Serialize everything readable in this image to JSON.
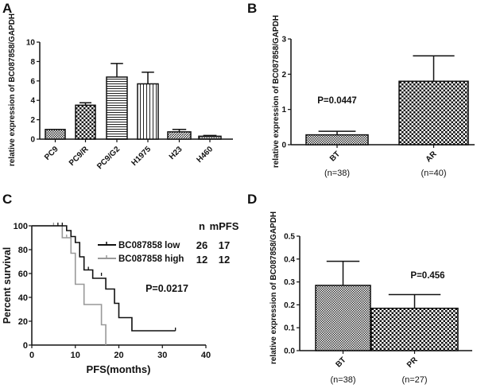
{
  "chart_data": [
    {
      "panel": "A",
      "type": "bar",
      "ylabel": "relative expression of BC087858/GAPDH",
      "categories": [
        "PC9",
        "PC9/R",
        "PC9/G2",
        "H1975",
        "H23",
        "H460"
      ],
      "values": [
        1.0,
        3.5,
        6.4,
        5.7,
        0.75,
        0.3
      ],
      "error_upper": [
        1.0,
        3.75,
        7.8,
        6.9,
        1.0,
        0.38
      ],
      "patterns": [
        "finecheck",
        "check",
        "hlines",
        "vlines",
        "diag",
        "finecheck"
      ],
      "ylim": [
        0,
        10
      ],
      "yticks": [
        0,
        2,
        4,
        6,
        8,
        10
      ]
    },
    {
      "panel": "B",
      "type": "bar",
      "ylabel": "relative expression of BC087858/GAPDH",
      "categories": [
        "BT",
        "AR"
      ],
      "sublabels": [
        "(n=38)",
        "(n=40)"
      ],
      "values": [
        0.28,
        1.8
      ],
      "error_upper": [
        0.38,
        2.52
      ],
      "patterns": [
        "finecheck",
        "check"
      ],
      "ylim": [
        0,
        3
      ],
      "yticks": [
        0,
        1,
        2,
        3
      ],
      "annotation": "P=0.0447"
    },
    {
      "panel": "C",
      "type": "line",
      "subtype": "kaplan-meier",
      "xlabel": "PFS(months)",
      "ylabel": "Percent survival",
      "xlim": [
        0,
        40
      ],
      "ylim": [
        0,
        100
      ],
      "xticks": [
        0,
        10,
        20,
        30,
        40
      ],
      "yticks": [
        0,
        20,
        40,
        60,
        80,
        100
      ],
      "legend_headers": [
        "n",
        "mPFS"
      ],
      "series": [
        {
          "name": "BC087858 low",
          "n": "26",
          "mPFS": "17",
          "color": "#111111",
          "steps": [
            [
              0,
              100
            ],
            [
              8,
              96
            ],
            [
              9,
              91
            ],
            [
              10,
              86
            ],
            [
              11,
              74
            ],
            [
              12,
              63
            ],
            [
              14,
              56
            ],
            [
              17,
              47
            ],
            [
              19,
              35
            ],
            [
              20,
              23
            ],
            [
              23,
              12
            ],
            [
              33,
              12
            ]
          ],
          "censored": [
            [
              6,
              100
            ],
            [
              7,
              100
            ],
            [
              13,
              63
            ],
            [
              16,
              58
            ],
            [
              33,
              12
            ]
          ]
        },
        {
          "name": "BC087858 high",
          "n": "12",
          "mPFS": "12",
          "color": "#999999",
          "steps": [
            [
              0,
              100
            ],
            [
              7,
              90
            ],
            [
              9,
              77
            ],
            [
              10,
              51
            ],
            [
              12,
              34
            ],
            [
              16,
              17
            ],
            [
              17,
              0
            ]
          ],
          "censored": [
            [
              5,
              100
            ],
            [
              8,
              90
            ]
          ]
        }
      ],
      "annotation": "P=0.0217"
    },
    {
      "panel": "D",
      "type": "bar",
      "ylabel": "relative expression of BC087858/GAPDH",
      "categories": [
        "BT",
        "PR"
      ],
      "sublabels": [
        "(n=38)",
        "(n=27)"
      ],
      "values": [
        0.285,
        0.185
      ],
      "error_upper": [
        0.39,
        0.245
      ],
      "patterns": [
        "finecheck",
        "check"
      ],
      "ylim": [
        0,
        0.5
      ],
      "yticks": [
        "0.0",
        "0.1",
        "0.2",
        "0.3",
        "0.4",
        "0.5"
      ],
      "annotation": "P=0.456"
    }
  ]
}
